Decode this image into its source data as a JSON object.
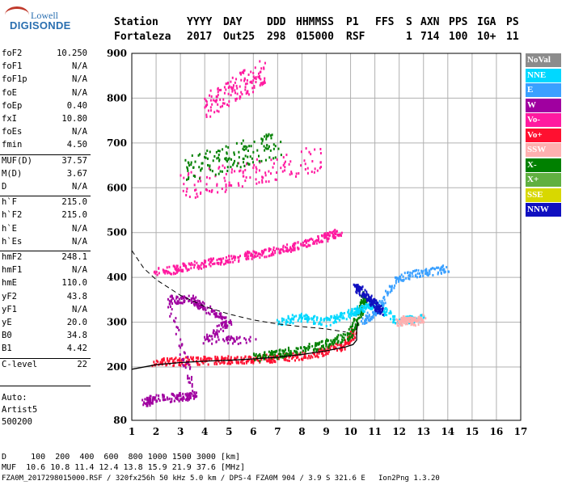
{
  "logo": {
    "top": "Lowell",
    "main": "DIGISONDE"
  },
  "header": {
    "labels": [
      "Station",
      "YYYY",
      "DAY",
      "DDD",
      "HHMMSS",
      "P1",
      "FFS",
      "S",
      "AXN",
      "PPS",
      "IGA",
      "PS"
    ],
    "values": [
      "Fortaleza",
      "2017",
      "Out25",
      "298",
      "015000",
      "RSF",
      "",
      "1",
      "714",
      "100",
      "10+",
      "11"
    ]
  },
  "params": [
    {
      "k": "foF2",
      "v": "10.250"
    },
    {
      "k": "foF1",
      "v": "N/A"
    },
    {
      "k": "foF1p",
      "v": "N/A"
    },
    {
      "k": "foE",
      "v": "N/A"
    },
    {
      "k": "foEp",
      "v": "0.40"
    },
    {
      "k": "fxI",
      "v": "10.80"
    },
    {
      "k": "foEs",
      "v": "N/A"
    },
    {
      "k": "fmin",
      "v": "4.50"
    },
    {
      "k": "MUF(D)",
      "v": "37.57"
    },
    {
      "k": "M(D)",
      "v": "3.67"
    },
    {
      "k": "D",
      "v": "N/A"
    },
    {
      "k": "h`F",
      "v": "215.0"
    },
    {
      "k": "h`F2",
      "v": "215.0"
    },
    {
      "k": "h`E",
      "v": "N/A"
    },
    {
      "k": "h`Es",
      "v": "N/A"
    },
    {
      "k": "hmF2",
      "v": "248.1"
    },
    {
      "k": "hmF1",
      "v": "N/A"
    },
    {
      "k": "hmE",
      "v": "110.0"
    },
    {
      "k": "yF2",
      "v": "43.8"
    },
    {
      "k": "yF1",
      "v": "N/A"
    },
    {
      "k": "yE",
      "v": "20.0"
    },
    {
      "k": "B0",
      "v": "34.8"
    },
    {
      "k": "B1",
      "v": "4.42"
    },
    {
      "k": "C-level",
      "v": "22"
    }
  ],
  "auto": {
    "line1": "Auto:",
    "line2": "Artist5",
    "line3": "500200"
  },
  "legend": [
    {
      "label": "NoVal",
      "color": "#8c8c8c"
    },
    {
      "label": "NNE",
      "color": "#00d8ff"
    },
    {
      "label": "E",
      "color": "#3aa0ff"
    },
    {
      "label": "W",
      "color": "#a000a0"
    },
    {
      "label": "Vo-",
      "color": "#ff1aa0"
    },
    {
      "label": "Vo+",
      "color": "#ff1030"
    },
    {
      "label": "SSW",
      "color": "#ffb0b0"
    },
    {
      "label": "X-",
      "color": "#008000"
    },
    {
      "label": "X+",
      "color": "#60b040"
    },
    {
      "label": "SSE",
      "color": "#d8d800"
    },
    {
      "label": "NNW",
      "color": "#1010c0"
    }
  ],
  "footer": {
    "line1": "D     100  200  400  600  800 1000 1500 3000 [km]",
    "line2": "MUF  10.6 10.8 11.4 12.4 13.8 15.9 21.9 37.6 [MHz]",
    "line3": "FZA0M_2017298015000.RSF / 320fx256h 50 kHz 5.0 km / DPS-4 FZA0M 904 / 3.9 S 321.6 E   Ion2Png 1.3.20"
  },
  "chart_data": {
    "type": "scatter",
    "xlim": [
      1,
      17
    ],
    "ylim": [
      80,
      900
    ],
    "xticks": [
      1,
      2,
      3,
      4,
      5,
      6,
      7,
      8,
      9,
      10,
      11,
      12,
      13,
      14,
      15,
      16,
      17
    ],
    "yticks": [
      80,
      200,
      300,
      400,
      500,
      600,
      700,
      800,
      900
    ],
    "grid": true,
    "xlabel": "",
    "ylabel": "",
    "series": [
      {
        "name": "Vo+",
        "color": "#ff1030",
        "trace": [
          [
            1.9,
            210
          ],
          [
            3,
            212
          ],
          [
            4,
            214
          ],
          [
            5,
            215
          ],
          [
            6,
            217
          ],
          [
            7,
            220
          ],
          [
            8,
            225
          ],
          [
            9,
            235
          ],
          [
            9.8,
            250
          ],
          [
            10.2,
            280
          ]
        ]
      },
      {
        "name": "Vo-",
        "color": "#ff1aa0",
        "trace": [
          [
            2,
            410
          ],
          [
            3,
            420
          ],
          [
            4,
            430
          ],
          [
            5,
            440
          ],
          [
            6,
            450
          ],
          [
            7,
            460
          ],
          [
            8,
            472
          ],
          [
            9,
            490
          ],
          [
            9.6,
            500
          ]
        ]
      },
      {
        "name": "X-",
        "color": "#008000",
        "trace": [
          [
            6,
            220
          ],
          [
            7,
            228
          ],
          [
            8,
            240
          ],
          [
            9,
            250
          ],
          [
            10,
            270
          ],
          [
            10.4,
            320
          ],
          [
            10.6,
            360
          ]
        ]
      },
      {
        "name": "W",
        "color": "#a000a0",
        "trace": [
          [
            1.5,
            120
          ],
          [
            2,
            128
          ],
          [
            3,
            132
          ],
          [
            3.6,
            135
          ],
          [
            2.5,
            350
          ],
          [
            3.5,
            350
          ],
          [
            4,
            330
          ],
          [
            5,
            300
          ],
          [
            4,
            260
          ],
          [
            6,
            260
          ]
        ]
      },
      {
        "name": "NNE",
        "color": "#00d8ff",
        "trace": [
          [
            7,
            300
          ],
          [
            8,
            310
          ],
          [
            9,
            300
          ],
          [
            10,
            320
          ],
          [
            10.5,
            330
          ],
          [
            11,
            340
          ],
          [
            12,
            300
          ],
          [
            13,
            310
          ]
        ]
      },
      {
        "name": "E",
        "color": "#3aa0ff",
        "trace": [
          [
            10.5,
            300
          ],
          [
            11,
            320
          ],
          [
            12,
            400
          ],
          [
            13,
            410
          ],
          [
            14,
            420
          ]
        ]
      },
      {
        "name": "NNW",
        "color": "#1010c0",
        "trace": [
          [
            10.2,
            380
          ],
          [
            10.6,
            360
          ],
          [
            11,
            340
          ],
          [
            11.3,
            320
          ]
        ]
      },
      {
        "name": "SSW",
        "color": "#ffb0b0",
        "trace": [
          [
            12,
            300
          ],
          [
            12.3,
            305
          ],
          [
            12.6,
            300
          ],
          [
            13,
            310
          ]
        ]
      }
    ],
    "profile_line": [
      [
        1,
        195
      ],
      [
        2,
        205
      ],
      [
        3,
        210
      ],
      [
        4,
        213
      ],
      [
        5,
        215
      ],
      [
        6,
        218
      ],
      [
        7,
        222
      ],
      [
        8,
        228
      ],
      [
        9,
        236
      ],
      [
        9.8,
        245
      ],
      [
        10.1,
        250
      ],
      [
        10.25,
        260
      ],
      [
        10.25,
        280
      ],
      [
        10.3,
        300
      ]
    ],
    "dashed_line": [
      [
        1,
        460
      ],
      [
        1.5,
        420
      ],
      [
        2,
        395
      ],
      [
        3,
        360
      ],
      [
        4,
        335
      ],
      [
        5,
        318
      ],
      [
        6,
        305
      ],
      [
        7,
        296
      ],
      [
        8,
        290
      ],
      [
        9,
        285
      ],
      [
        9.8,
        278
      ]
    ]
  }
}
